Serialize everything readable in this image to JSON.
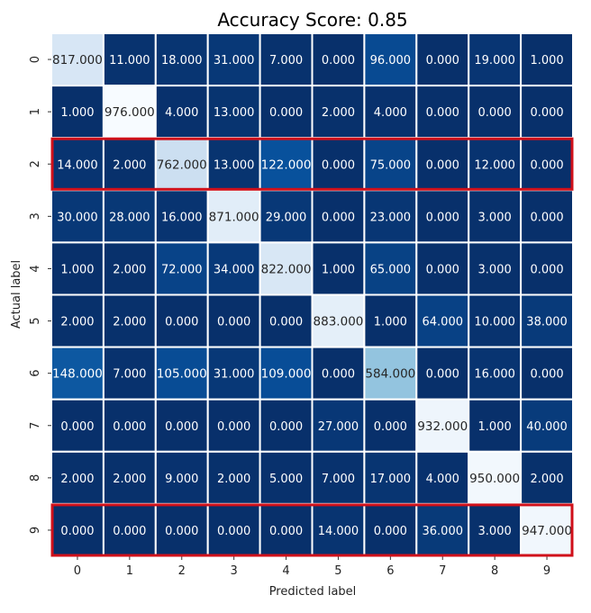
{
  "chart_data": {
    "type": "heatmap",
    "title": "Accuracy Score: 0.85",
    "xlabel": "Predicted label",
    "ylabel": "Actual label",
    "x_ticks": [
      "0",
      "1",
      "2",
      "3",
      "4",
      "5",
      "6",
      "7",
      "8",
      "9"
    ],
    "y_ticks": [
      "0",
      "1",
      "2",
      "3",
      "4",
      "5",
      "6",
      "7",
      "8",
      "9"
    ],
    "colormap": "Blues_r",
    "value_range": [
      0,
      976
    ],
    "value_format": "0.000",
    "matrix": [
      [
        817,
        11,
        18,
        31,
        7,
        0,
        96,
        0,
        19,
        1
      ],
      [
        1,
        976,
        4,
        13,
        0,
        2,
        4,
        0,
        0,
        0
      ],
      [
        14,
        2,
        762,
        13,
        122,
        0,
        75,
        0,
        12,
        0
      ],
      [
        30,
        28,
        16,
        871,
        29,
        0,
        23,
        0,
        3,
        0
      ],
      [
        1,
        2,
        72,
        34,
        822,
        1,
        65,
        0,
        3,
        0
      ],
      [
        2,
        2,
        0,
        0,
        0,
        883,
        1,
        64,
        10,
        38
      ],
      [
        148,
        7,
        105,
        31,
        109,
        0,
        584,
        0,
        16,
        0
      ],
      [
        0,
        0,
        0,
        0,
        0,
        27,
        0,
        932,
        1,
        40
      ],
      [
        2,
        2,
        9,
        2,
        5,
        7,
        17,
        4,
        950,
        2
      ],
      [
        0,
        0,
        0,
        0,
        0,
        14,
        0,
        36,
        3,
        947
      ]
    ],
    "highlighted_rows": [
      2,
      9
    ],
    "highlight_color": "#d0101a",
    "colorbar": false
  }
}
